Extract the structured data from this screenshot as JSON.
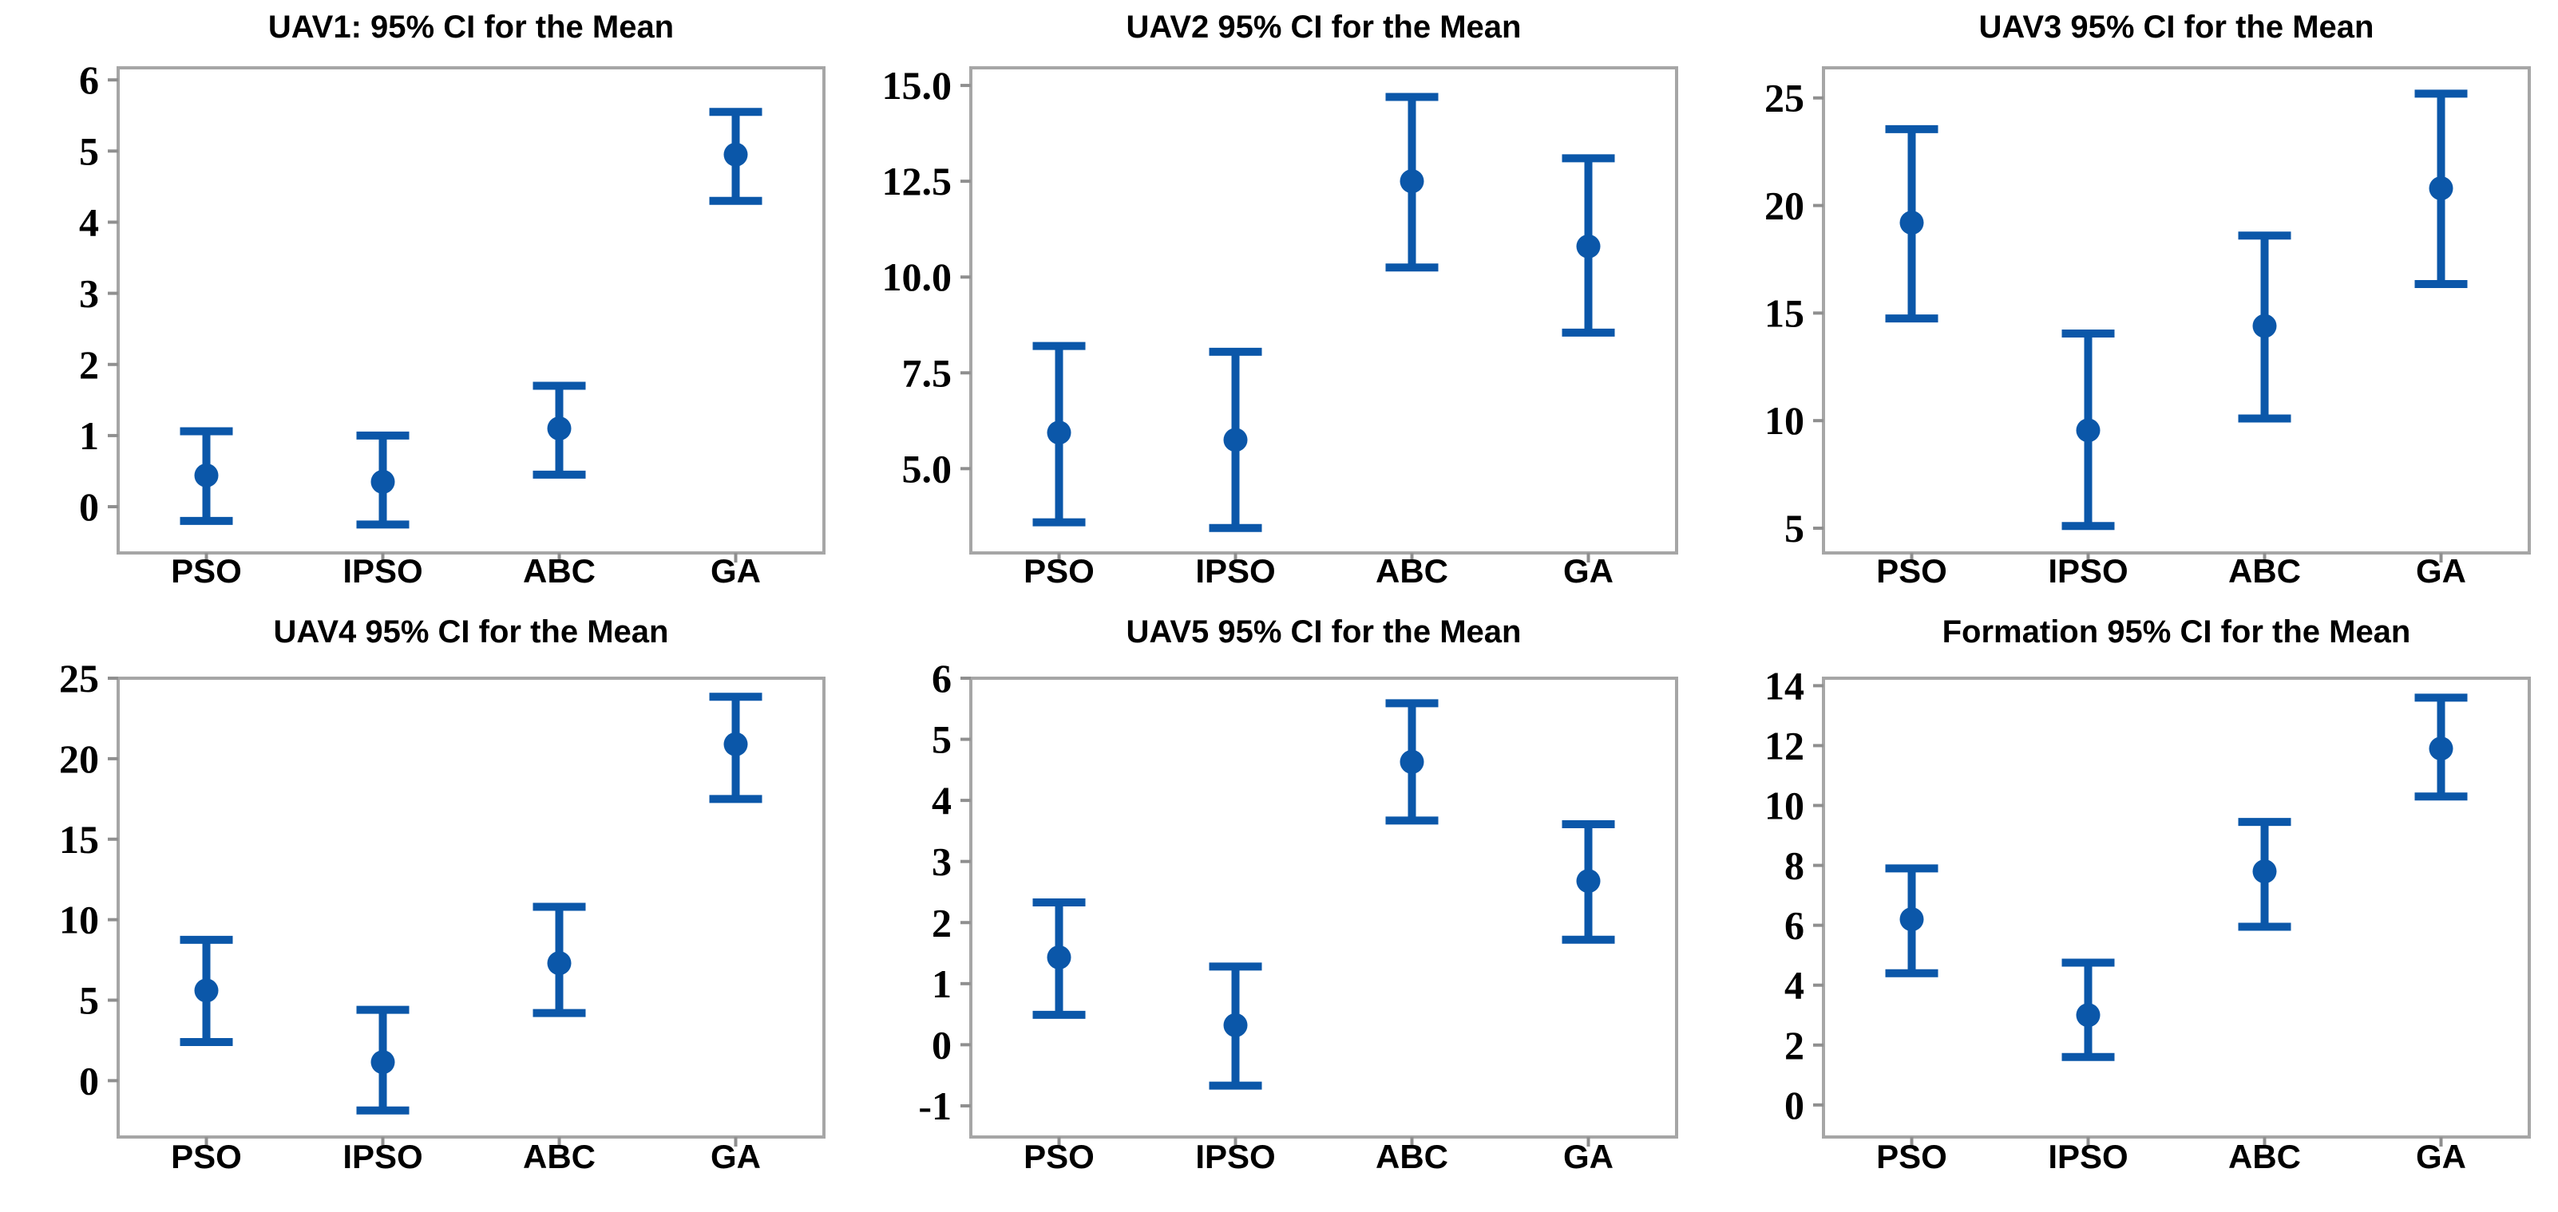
{
  "figure": {
    "description": "Grid of six 95% confidence-interval-for-the-mean error-bar plots comparing PSO, IPSO, ABC and GA algorithms for UAV1-UAV5 and Formation"
  },
  "style": {
    "marker_blue": "#0B57A9",
    "frame_gray": "#A6A6A6",
    "tick_gray": "#8F8F8F",
    "text_black": "#000000",
    "background": "#FFFFFF"
  },
  "chart_data": [
    {
      "id": "uav1",
      "type": "errorbar",
      "title": "UAV1: 95% CI for the Mean",
      "categories": [
        "PSO",
        "IPSO",
        "ABC",
        "GA"
      ],
      "series": [
        {
          "name": "mean",
          "values": [
            0.44,
            0.35,
            1.1,
            4.95
          ]
        },
        {
          "name": "ci_lower",
          "values": [
            -0.2,
            -0.25,
            0.45,
            4.3
          ]
        },
        {
          "name": "ci_upper",
          "values": [
            1.06,
            1.0,
            1.7,
            5.55
          ]
        }
      ],
      "ylim": [
        -0.65,
        6.17
      ],
      "yticks": [
        "0",
        "1",
        "2",
        "3",
        "4",
        "5",
        "6"
      ],
      "xlabel": "",
      "ylabel": "",
      "grid": "off",
      "legend": "none"
    },
    {
      "id": "uav2",
      "type": "errorbar",
      "title": "UAV2 95% CI for the Mean",
      "categories": [
        "PSO",
        "IPSO",
        "ABC",
        "GA"
      ],
      "series": [
        {
          "name": "mean",
          "values": [
            5.94,
            5.75,
            12.5,
            10.8
          ]
        },
        {
          "name": "ci_lower",
          "values": [
            3.6,
            3.45,
            10.25,
            8.55
          ]
        },
        {
          "name": "ci_upper",
          "values": [
            8.2,
            8.05,
            14.7,
            13.1
          ]
        }
      ],
      "ylim": [
        2.8,
        15.46
      ],
      "yticks": [
        "5.0",
        "7.5",
        "10.0",
        "12.5",
        "15.0"
      ],
      "xlabel": "",
      "ylabel": "",
      "grid": "off",
      "legend": "none"
    },
    {
      "id": "uav3",
      "type": "errorbar",
      "title": "UAV3 95% CI for the Mean",
      "categories": [
        "PSO",
        "IPSO",
        "ABC",
        "GA"
      ],
      "series": [
        {
          "name": "mean",
          "values": [
            19.2,
            9.55,
            14.4,
            20.8
          ]
        },
        {
          "name": "ci_lower",
          "values": [
            14.75,
            5.1,
            10.1,
            16.35
          ]
        },
        {
          "name": "ci_upper",
          "values": [
            23.55,
            14.05,
            18.6,
            25.2
          ]
        }
      ],
      "ylim": [
        3.85,
        26.4
      ],
      "yticks": [
        "5",
        "10",
        "15",
        "20",
        "25"
      ],
      "xlabel": "",
      "ylabel": "",
      "grid": "off",
      "legend": "none"
    },
    {
      "id": "uav4",
      "type": "errorbar",
      "title": "UAV4 95% CI for the Mean",
      "categories": [
        "PSO",
        "IPSO",
        "ABC",
        "GA"
      ],
      "series": [
        {
          "name": "mean",
          "values": [
            5.6,
            1.15,
            7.3,
            20.9
          ]
        },
        {
          "name": "ci_lower",
          "values": [
            2.4,
            -1.85,
            4.2,
            17.5
          ]
        },
        {
          "name": "ci_upper",
          "values": [
            8.75,
            4.4,
            10.8,
            23.85
          ]
        }
      ],
      "ylim": [
        -3.5,
        25.0
      ],
      "yticks": [
        "0",
        "5",
        "10",
        "15",
        "20",
        "25"
      ],
      "xlabel": "",
      "ylabel": "",
      "grid": "off",
      "legend": "none"
    },
    {
      "id": "uav5",
      "type": "errorbar",
      "title": "UAV5 95% CI for the Mean",
      "categories": [
        "PSO",
        "IPSO",
        "ABC",
        "GA"
      ],
      "series": [
        {
          "name": "mean",
          "values": [
            1.43,
            0.32,
            4.63,
            2.68
          ]
        },
        {
          "name": "ci_lower",
          "values": [
            0.49,
            -0.67,
            3.67,
            1.72
          ]
        },
        {
          "name": "ci_upper",
          "values": [
            2.33,
            1.28,
            5.59,
            3.61
          ]
        }
      ],
      "ylim": [
        -1.51,
        6.0
      ],
      "yticks": [
        "-1",
        "0",
        "1",
        "2",
        "3",
        "4",
        "5",
        "6"
      ],
      "xlabel": "",
      "ylabel": "",
      "grid": "off",
      "legend": "none"
    },
    {
      "id": "formation",
      "type": "errorbar",
      "title": "Formation 95% CI for the Mean",
      "categories": [
        "PSO",
        "IPSO",
        "ABC",
        "GA"
      ],
      "series": [
        {
          "name": "mean",
          "values": [
            6.2,
            3.0,
            7.8,
            11.9
          ]
        },
        {
          "name": "ci_lower",
          "values": [
            4.4,
            1.6,
            5.95,
            10.3
          ]
        },
        {
          "name": "ci_upper",
          "values": [
            7.9,
            4.75,
            9.45,
            13.6
          ]
        }
      ],
      "ylim": [
        -1.07,
        14.25
      ],
      "yticks": [
        "0",
        "2",
        "4",
        "6",
        "8",
        "10",
        "12",
        "14"
      ],
      "xlabel": "",
      "ylabel": "",
      "grid": "off",
      "legend": "none"
    }
  ]
}
